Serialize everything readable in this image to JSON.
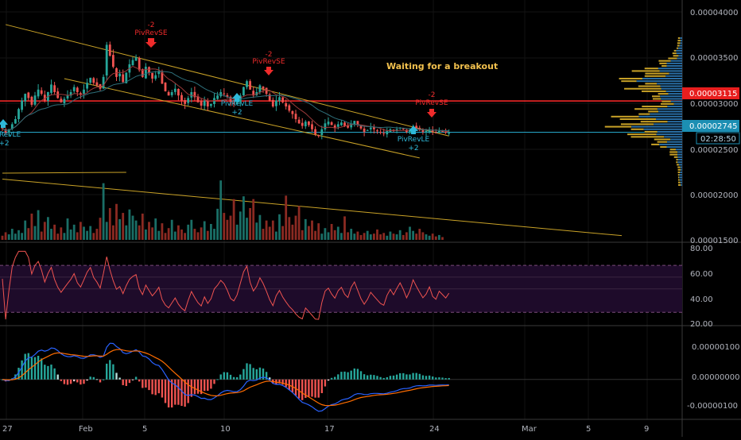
{
  "annotation": "Waiting for a breakout",
  "colors": {
    "bull": "#26a69a",
    "bear": "#ef5350",
    "bear_dark": "#8b2a22",
    "bull_dark": "#1a6e66",
    "signal_short": "#ef2b2b",
    "signal_long": "#2eb8d8",
    "trendline": "#c9a227",
    "resistance": "#ff2a2a",
    "current_line": "#26a6c8",
    "rsi_line": "#ef5350",
    "rsi_band": "#1e0b2a",
    "macd": "#2962ff",
    "macd_signal": "#ff6d00",
    "text_gold": "#f2c14e"
  },
  "price_axis": {
    "ticks": [
      "0.00004000",
      "0.00003500",
      "0.00003000",
      "0.00002500",
      "0.00002000",
      "0.00001500"
    ],
    "resistance_label": "0.00003115",
    "current_label": "0.00002745",
    "countdown": "02:28:50"
  },
  "rsi_axis": {
    "ticks": [
      "80.00",
      "60.00",
      "40.00",
      "20.00"
    ]
  },
  "macd_axis": {
    "ticks": [
      "0.00000100",
      "0.00000000",
      "-0.00000100"
    ]
  },
  "date_axis": [
    "27",
    "Feb",
    "5",
    "10",
    "17",
    "24",
    "Mar",
    "5",
    "9"
  ],
  "signals": [
    {
      "dir": "short",
      "count": "-2",
      "label": "PivRevSE"
    },
    {
      "dir": "short",
      "count": "-2",
      "label": "PivRevSE"
    },
    {
      "dir": "short",
      "count": "-2",
      "label": "PivRevSE"
    },
    {
      "dir": "long",
      "count": "+2",
      "label": "PivRevLE"
    },
    {
      "dir": "long",
      "count": "+2",
      "label": "PivRevLE"
    },
    {
      "dir": "long",
      "count": "+2",
      "label": "PivRevLE"
    }
  ],
  "chart_data": {
    "type": "candlestick",
    "panes": [
      "price",
      "volume",
      "rsi",
      "macd"
    ],
    "price_range": [
      1.47e-05,
      4.17e-05
    ],
    "resistance": 3.115e-05,
    "current_price": 2.745e-05,
    "channel_upper": [
      [
        1,
        4.02e-05
      ],
      [
        137,
        2.7e-05
      ]
    ],
    "channel_lower": [
      [
        19,
        3.38e-05
      ],
      [
        128,
        2.44e-05
      ]
    ],
    "volume_trend": [
      [
        0,
        2.19e-05
      ],
      [
        190,
        1.52e-05
      ]
    ],
    "volume_top_line": [
      [
        0,
        2.26e-05
      ],
      [
        38,
        2.27e-05
      ]
    ],
    "rsi_range": [
      20,
      85
    ],
    "rsi_levels": [
      70,
      60,
      50,
      30
    ],
    "macd_range": [
      -1.3e-06,
      1.7e-06
    ],
    "candles_seed": "closes",
    "closes": [
      2.79e-05,
      2.74e-05,
      2.78e-05,
      2.84e-05,
      2.9e-05,
      3.02e-05,
      3.12e-05,
      3.2e-05,
      3.15e-05,
      3.07e-05,
      3.18e-05,
      3.25e-05,
      3.2e-05,
      3.12e-05,
      3.22e-05,
      3.31e-05,
      3.22e-05,
      3.15e-05,
      3.1e-05,
      3.14e-05,
      3.18e-05,
      3.22e-05,
      3.28e-05,
      3.22e-05,
      3.19e-05,
      3.25e-05,
      3.33e-05,
      3.39e-05,
      3.33e-05,
      3.3e-05,
      3.26e-05,
      3.4e-05,
      3.78e-05,
      3.65e-05,
      3.52e-05,
      3.4e-05,
      3.44e-05,
      3.34e-05,
      3.45e-05,
      3.55e-05,
      3.6e-05,
      3.63e-05,
      3.48e-05,
      3.4e-05,
      3.52e-05,
      3.45e-05,
      3.38e-05,
      3.42e-05,
      3.47e-05,
      3.32e-05,
      3.23e-05,
      3.18e-05,
      3.22e-05,
      3.26e-05,
      3.18e-05,
      3.12e-05,
      3.08e-05,
      3.15e-05,
      3.22e-05,
      3.16e-05,
      3.1e-05,
      3.06e-05,
      3.12e-05,
      3.05e-05,
      3.08e-05,
      3.15e-05,
      3.18e-05,
      3.22e-05,
      3.2e-05,
      3.16e-05,
      3.1e-05,
      3.08e-05,
      3.11e-05,
      3.18e-05,
      3.28e-05,
      3.35e-05,
      3.25e-05,
      3.18e-05,
      3.22e-05,
      3.3e-05,
      3.26e-05,
      3.2e-05,
      3.12e-05,
      3.05e-05,
      3.12e-05,
      3.16e-05,
      3.1e-05,
      3.05e-05,
      3e-05,
      2.96e-05,
      2.9e-05,
      2.85e-05,
      2.82e-05,
      2.87e-05,
      2.83e-05,
      2.78e-05,
      2.72e-05,
      2.7e-05,
      2.78e-05,
      2.85e-05,
      2.87e-05,
      2.83e-05,
      2.8e-05,
      2.84e-05,
      2.86e-05,
      2.82e-05,
      2.8e-05,
      2.85e-05,
      2.88e-05,
      2.84e-05,
      2.79e-05,
      2.75e-05,
      2.77e-05,
      2.8e-05,
      2.78e-05,
      2.76e-05,
      2.74e-05,
      2.73e-05,
      2.76e-05,
      2.78e-05,
      2.76e-05,
      2.78e-05,
      2.8e-05,
      2.78e-05,
      2.75e-05,
      2.77e-05,
      2.81e-05,
      2.79e-05,
      2.77e-05,
      2.75e-05,
      2.76e-05,
      2.78e-05,
      2.75e-05,
      2.74e-05,
      2.76e-05,
      2.75e-05,
      2.74e-05,
      2.75e-05
    ],
    "volumes": [
      0.6,
      1.1,
      0.8,
      1.6,
      0.9,
      1.4,
      1.0,
      2.8,
      1.7,
      3.8,
      2.0,
      4.3,
      1.2,
      2.6,
      3.3,
      1.6,
      2.2,
      0.9,
      1.8,
      1.0,
      3.1,
      1.5,
      2.2,
      1.1,
      2.6,
      1.9,
      1.3,
      2.0,
      1.0,
      1.6,
      3.2,
      8.2,
      2.6,
      4.6,
      2.1,
      5.2,
      3.0,
      3.9,
      2.1,
      4.4,
      3.5,
      2.8,
      2.1,
      3.8,
      1.5,
      2.6,
      1.8,
      3.1,
      1.3,
      2.4,
      1.0,
      1.7,
      2.9,
      1.2,
      2.1,
      1.5,
      1.0,
      2.2,
      2.9,
      1.6,
      1.1,
      1.8,
      2.7,
      1.3,
      2.3,
      1.6,
      4.5,
      8.6,
      3.9,
      2.9,
      3.5,
      5.9,
      2.2,
      4.1,
      6.3,
      3.2,
      4.6,
      5.9,
      2.5,
      3.6,
      1.6,
      2.8,
      1.9,
      2.8,
      1.2,
      3.7,
      2.0,
      6.4,
      3.3,
      2.2,
      3.5,
      4.9,
      1.4,
      3.0,
      2.0,
      2.8,
      1.3,
      2.4,
      0.9,
      1.7,
      1.1,
      2.3,
      1.4,
      1.9,
      1.0,
      3.4,
      1.1,
      1.6,
      0.9,
      1.2,
      0.7,
      1.0,
      1.3,
      0.8,
      0.9,
      1.5,
      0.8,
      1.0,
      0.6,
      1.2,
      0.9,
      0.8,
      1.4,
      0.7,
      1.1,
      1.9,
      1.3,
      0.9,
      1.6,
      1.1,
      0.8,
      0.6,
      0.9,
      0.5,
      0.7,
      0.4
    ]
  }
}
